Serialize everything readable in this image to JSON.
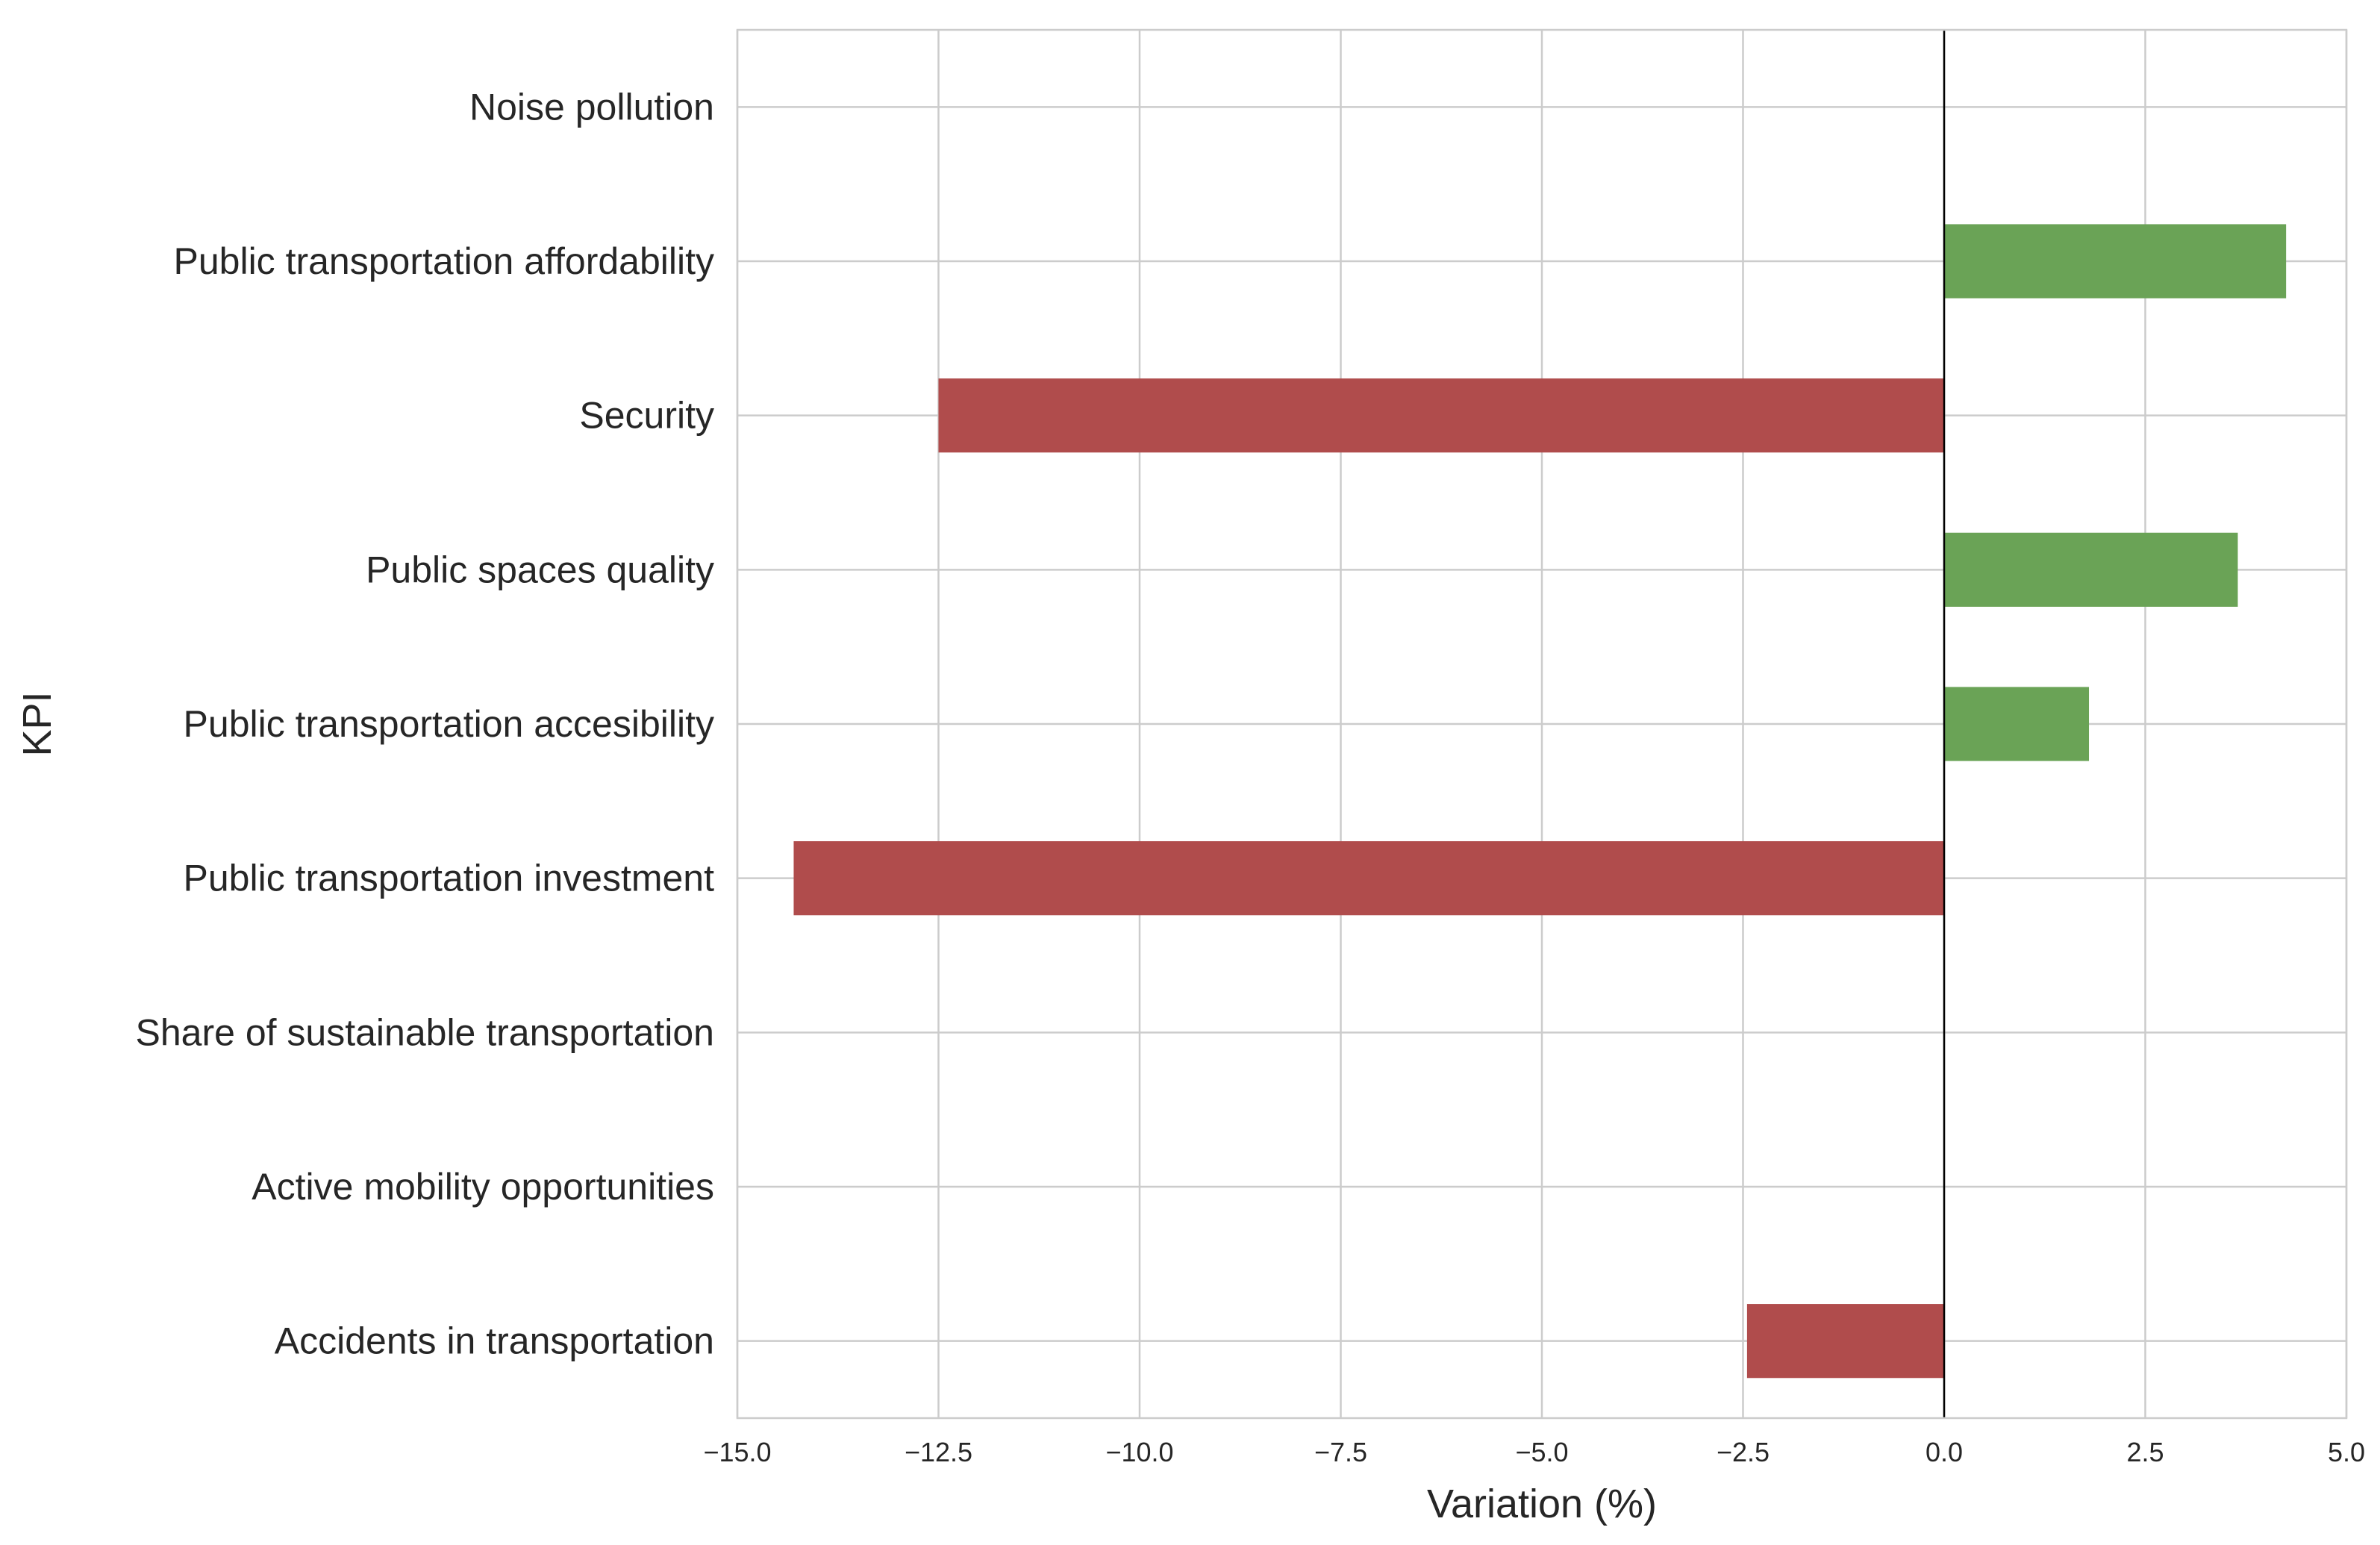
{
  "chart_data": {
    "type": "bar",
    "orientation": "horizontal",
    "title": "",
    "xlabel": "Variation (%)",
    "ylabel": "KPI",
    "xlim": [
      -15.0,
      5.0
    ],
    "xticks": [
      -15.0,
      -12.5,
      -10.0,
      -7.5,
      -5.0,
      -2.5,
      0.0,
      2.5,
      5.0
    ],
    "xtick_labels": [
      "−15.0",
      "−12.5",
      "−10.0",
      "−7.5",
      "−5.0",
      "−2.5",
      "0.0",
      "2.5",
      "5.0"
    ],
    "grid": true,
    "categories": [
      "Noise pollution",
      "Public transportation affordability",
      "Security",
      "Public spaces quality",
      "Public transportation accesibility",
      "Public transportation investment",
      "Share of sustainable transportation",
      "Active mobility opportunities",
      "Accidents in transportation"
    ],
    "values": [
      0.0,
      4.25,
      -12.5,
      3.65,
      1.8,
      -14.3,
      0.0,
      0.0,
      -2.45
    ],
    "colors": {
      "positive": "#6aa356",
      "negative": "#b04c4c",
      "zero_line": "#000000"
    }
  }
}
